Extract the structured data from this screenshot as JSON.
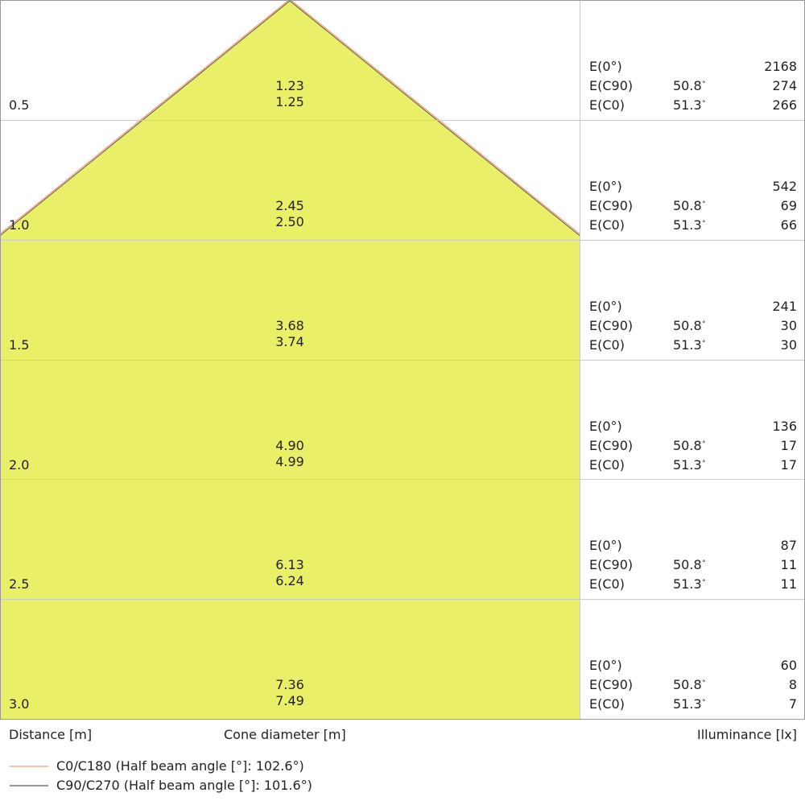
{
  "chart_data": {
    "type": "cone-diagram",
    "colors": {
      "cone_fill": "#e9ef66",
      "c0_line": "#f0a070",
      "c90_line": "#555555",
      "grid": "#cccccc"
    },
    "rows": [
      {
        "distance": "0.5",
        "d_c90": "1.23",
        "d_c0": "1.25",
        "e0": "2168",
        "e_c90": "274",
        "e_c0": "266"
      },
      {
        "distance": "1.0",
        "d_c90": "2.45",
        "d_c0": "2.50",
        "e0": "542",
        "e_c90": "69",
        "e_c0": "66"
      },
      {
        "distance": "1.5",
        "d_c90": "3.68",
        "d_c0": "3.74",
        "e0": "241",
        "e_c90": "30",
        "e_c0": "30"
      },
      {
        "distance": "2.0",
        "d_c90": "4.90",
        "d_c0": "4.99",
        "e0": "136",
        "e_c90": "17",
        "e_c0": "17"
      },
      {
        "distance": "2.5",
        "d_c90": "6.13",
        "d_c0": "6.24",
        "e0": "87",
        "e_c90": "11",
        "e_c0": "11"
      },
      {
        "distance": "3.0",
        "d_c90": "7.36",
        "d_c0": "7.49",
        "e0": "60",
        "e_c90": "8",
        "e_c0": "7"
      }
    ],
    "labels": {
      "e0": "E(0°)",
      "e_c90": "E(C90)",
      "e_c0": "E(C0)",
      "angle_c90": "50.8",
      "angle_c0": "51.3",
      "deg": "°"
    },
    "xlabel_left": "Distance [m]",
    "xlabel_center": "Cone diameter [m]",
    "xlabel_right": "Illuminance [lx]",
    "legend": [
      {
        "name": "C0/C180 (Half beam angle [°]: 102.6°)",
        "color": "#f0a070"
      },
      {
        "name": "C90/C270 (Half beam angle [°]: 101.6°)",
        "color": "#555555"
      }
    ]
  }
}
